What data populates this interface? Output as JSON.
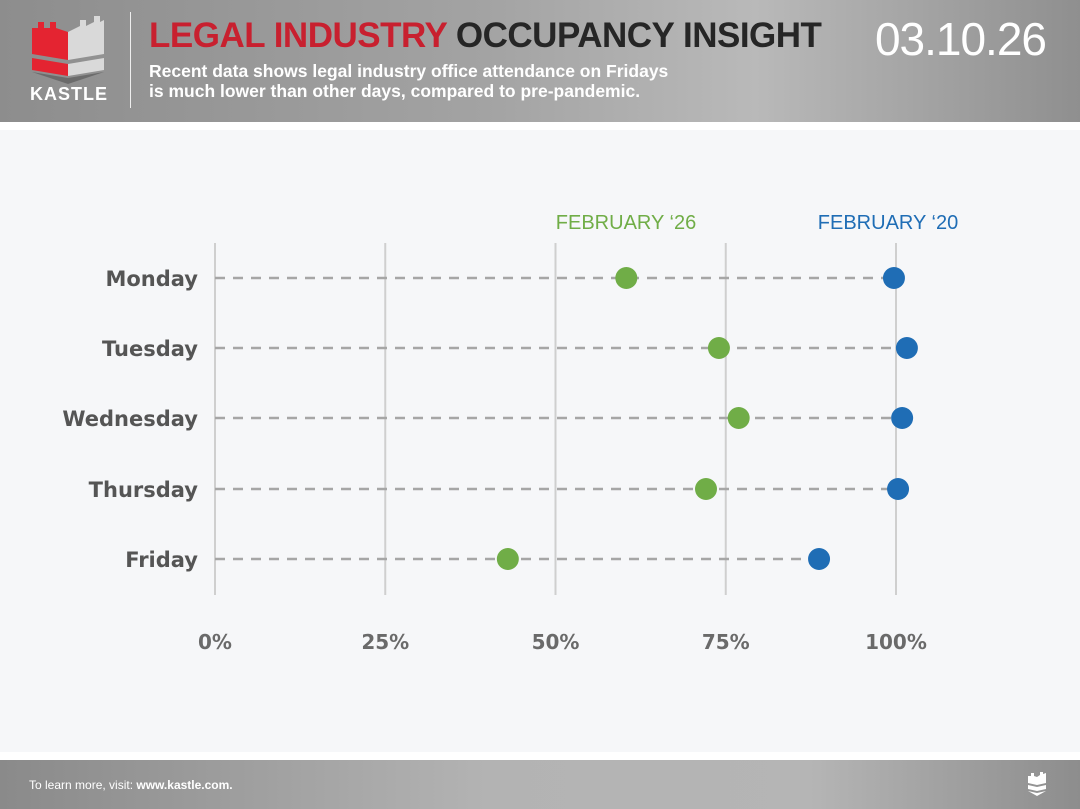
{
  "header": {
    "logo_text": "KASTLE",
    "title_red": "LEGAL INDUSTRY",
    "title_dark": "OCCUPANCY INSIGHT",
    "subtitle_line1": "Recent data shows legal industry office attendance on Fridays",
    "subtitle_line2": "is much lower than other days, compared to pre-pandemic.",
    "date": "03.10.26"
  },
  "footer": {
    "prefix": "To learn more, visit: ",
    "link": "www.kastle.com."
  },
  "chart_data": {
    "type": "dot",
    "categories": [
      "Monday",
      "Tuesday",
      "Wednesday",
      "Thursday",
      "Friday"
    ],
    "series": [
      {
        "name": "FEBRUARY ‘26",
        "color": "#70ad47",
        "values": [
          60.4,
          74.0,
          76.9,
          72.1,
          43.0
        ]
      },
      {
        "name": "FEBRUARY ‘20",
        "color": "#1f6db5",
        "values": [
          99.7,
          101.6,
          100.9,
          100.3,
          88.7
        ]
      }
    ],
    "x_ticks": [
      "0%",
      "25%",
      "50%",
      "75%",
      "100%"
    ],
    "x_tick_values": [
      0,
      25,
      50,
      75,
      100
    ],
    "xlim": [
      0,
      100
    ],
    "grid": "vertical",
    "legend_placement": "top"
  }
}
